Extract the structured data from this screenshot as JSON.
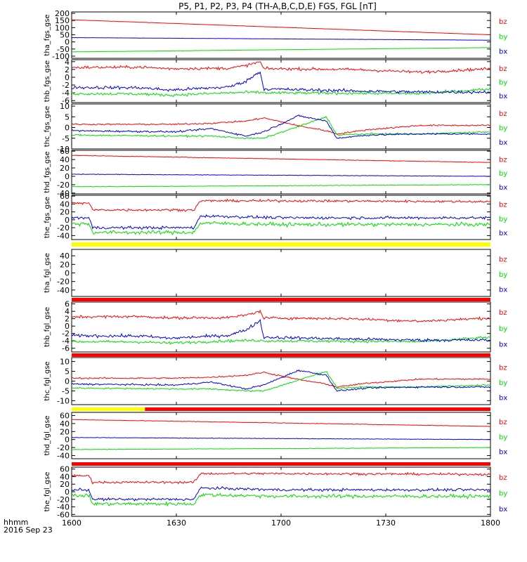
{
  "title": "P5, P1, P2, P3, P4 (TH-A,B,C,D,E) FGS, FGL [nT]",
  "x_axis": {
    "label_line1": "hhmm",
    "label_line2": "2016 Sep 23",
    "ticks": [
      "1600",
      "1630",
      "1700",
      "1730",
      "1800"
    ],
    "range": [
      "16:00",
      "18:00"
    ]
  },
  "colors": {
    "bz": "#ff0000",
    "by": "#00dd00",
    "bx": "#0000dd",
    "flag_yellow": "#ffff00",
    "flag_red": "#ff0000"
  },
  "chart_data": [
    {
      "type": "line",
      "panel": "tha_fgs_gse",
      "ylabel": "tha_fgs_gse",
      "ylim": [
        -115,
        210
      ],
      "yticks": [
        200,
        150,
        100,
        50,
        0,
        -50,
        -100
      ],
      "x": [
        "16:00",
        "18:00"
      ],
      "series": [
        {
          "name": "bz",
          "values": [
            155,
            50
          ],
          "noise": 0.5
        },
        {
          "name": "by",
          "values": [
            -70,
            -40
          ],
          "noise": 0.5
        },
        {
          "name": "bx",
          "values": [
            30,
            12
          ],
          "noise": 0.5
        }
      ]
    },
    {
      "type": "line",
      "panel": "thb_fgs_gse",
      "ylabel": "thb_fgs_gse",
      "ylim": [
        -6.5,
        4.5
      ],
      "yticks": [
        4,
        2,
        0,
        -2,
        -4,
        -6
      ],
      "x": [
        "16:00",
        "16:20",
        "16:28",
        "16:45",
        "16:50",
        "16:54",
        "16:55",
        "17:20",
        "17:40",
        "18:00"
      ],
      "series": [
        {
          "name": "bz",
          "values": [
            2.5,
            2.6,
            2.2,
            2.3,
            3.0,
            4.0,
            2.2,
            2.0,
            1.3,
            2.2
          ],
          "noise": 0.3
        },
        {
          "name": "by",
          "values": [
            -4.2,
            -4.3,
            -4.6,
            -4.0,
            -3.9,
            -3.9,
            -4.0,
            -4.1,
            -4.2,
            -3.0
          ],
          "noise": 0.3
        },
        {
          "name": "bx",
          "values": [
            -2.6,
            -2.7,
            -3.3,
            -2.5,
            -1.0,
            1.5,
            -3.0,
            -3.5,
            -3.8,
            -3.8
          ],
          "noise": 0.35
        }
      ]
    },
    {
      "type": "line",
      "panel": "thc_fgs_gse",
      "ylabel": "thc_fgs_gse",
      "ylim": [
        -10,
        11
      ],
      "yticks": [
        10,
        5,
        0,
        -5,
        -10
      ],
      "x": [
        "16:00",
        "16:30",
        "16:40",
        "16:50",
        "16:55",
        "17:05",
        "17:13",
        "17:16",
        "17:25",
        "17:40",
        "18:00"
      ],
      "series": [
        {
          "name": "bz",
          "values": [
            1.5,
            1.5,
            2.0,
            3.0,
            4.5,
            0.8,
            -1.5,
            -3.0,
            -1.0,
            1.0,
            1.0
          ],
          "noise": 0.3
        },
        {
          "name": "by",
          "values": [
            -3.5,
            -4.0,
            -4.0,
            -5.0,
            -5.0,
            0.5,
            5.0,
            -3.5,
            -3.0,
            -3.0,
            -2.0
          ],
          "noise": 0.3
        },
        {
          "name": "bx",
          "values": [
            -1.5,
            -2.0,
            -0.5,
            -4.0,
            -2.0,
            5.5,
            3.0,
            -5.0,
            -3.5,
            -3.0,
            -3.0
          ],
          "noise": 0.35
        }
      ]
    },
    {
      "type": "line",
      "panel": "thd_fgs_gse",
      "ylabel": "thd_fgs_gse",
      "ylim": [
        -42,
        62
      ],
      "yticks": [
        60,
        40,
        20,
        0,
        -20,
        -40
      ],
      "x": [
        "16:00",
        "18:00"
      ],
      "series": [
        {
          "name": "bz",
          "values": [
            50,
            33
          ],
          "noise": 0.5
        },
        {
          "name": "by",
          "values": [
            -25,
            -20
          ],
          "noise": 0.5
        },
        {
          "name": "bx",
          "values": [
            5,
            0
          ],
          "noise": 0.5
        }
      ]
    },
    {
      "type": "line",
      "panel": "the_fgs_gse",
      "ylabel": "the_fgs_gse",
      "ylim": [
        -50,
        62
      ],
      "yticks": [
        60,
        40,
        20,
        0,
        -20,
        -40
      ],
      "x": [
        "16:00",
        "16:05",
        "16:06",
        "16:35",
        "16:37",
        "17:00",
        "18:00"
      ],
      "series": [
        {
          "name": "bz",
          "values": [
            42,
            42,
            25,
            25,
            48,
            48,
            46
          ],
          "noise": 2.5
        },
        {
          "name": "by",
          "values": [
            -10,
            -10,
            -32,
            -32,
            -8,
            -12,
            -12
          ],
          "noise": 4.0
        },
        {
          "name": "bx",
          "values": [
            5,
            5,
            -20,
            -20,
            10,
            5,
            5
          ],
          "noise": 3.0
        }
      ]
    },
    {
      "type": "line",
      "panel": "tha_fgl_gse",
      "ylabel": "tha_fgl_gse",
      "ylim": [
        -55,
        55
      ],
      "yticks": [
        40,
        20,
        0,
        -20,
        -40
      ],
      "x": [
        "16:00",
        "18:00"
      ],
      "series": []
    },
    {
      "type": "line",
      "panel": "thb_fgl_gse",
      "ylabel": "thb_fgl_gse",
      "ylim": [
        -7,
        6.5
      ],
      "yticks": [
        6,
        4,
        2,
        0,
        -2,
        -4,
        -6
      ],
      "x": [
        "16:00",
        "16:20",
        "16:28",
        "16:45",
        "16:50",
        "16:54",
        "16:55",
        "17:20",
        "17:40",
        "18:00"
      ],
      "series": [
        {
          "name": "bz",
          "values": [
            2.5,
            2.6,
            2.2,
            2.3,
            3.0,
            4.0,
            2.2,
            2.0,
            1.3,
            2.2
          ],
          "noise": 0.3
        },
        {
          "name": "by",
          "values": [
            -4.2,
            -4.3,
            -4.6,
            -4.0,
            -3.9,
            -3.9,
            -4.0,
            -4.1,
            -4.2,
            -3.0
          ],
          "noise": 0.3
        },
        {
          "name": "bx",
          "values": [
            -2.6,
            -2.7,
            -3.3,
            -2.5,
            -1.0,
            1.5,
            -3.0,
            -3.5,
            -3.8,
            -3.8
          ],
          "noise": 0.35
        }
      ]
    },
    {
      "type": "line",
      "panel": "thc_fgl_gse",
      "ylabel": "thc_fgl_gse",
      "ylim": [
        -12,
        12
      ],
      "yticks": [
        10,
        5,
        0,
        -5,
        -10
      ],
      "x": [
        "16:00",
        "16:30",
        "16:40",
        "16:50",
        "16:55",
        "17:05",
        "17:13",
        "17:16",
        "17:25",
        "17:40",
        "18:00"
      ],
      "series": [
        {
          "name": "bz",
          "values": [
            1.5,
            1.5,
            2.0,
            3.0,
            4.5,
            0.8,
            -1.5,
            -3.0,
            -1.0,
            1.0,
            1.0
          ],
          "noise": 0.3
        },
        {
          "name": "by",
          "values": [
            -3.5,
            -4.0,
            -4.0,
            -5.0,
            -5.0,
            0.5,
            5.0,
            -3.5,
            -3.0,
            -3.0,
            -2.0
          ],
          "noise": 0.3
        },
        {
          "name": "bx",
          "values": [
            -1.5,
            -2.0,
            -0.5,
            -4.0,
            -2.0,
            5.5,
            3.0,
            -5.0,
            -3.5,
            -3.0,
            -3.0
          ],
          "noise": 0.35
        }
      ]
    },
    {
      "type": "line",
      "panel": "thd_fgl_gse",
      "ylabel": "thd_fgl_gse",
      "ylim": [
        -48,
        68
      ],
      "yticks": [
        60,
        40,
        20,
        0,
        -20,
        -40
      ],
      "x": [
        "16:00",
        "18:00"
      ],
      "series": [
        {
          "name": "bz",
          "values": [
            50,
            33
          ],
          "noise": 0.5
        },
        {
          "name": "by",
          "values": [
            -25,
            -20
          ],
          "noise": 0.5
        },
        {
          "name": "bx",
          "values": [
            5,
            0
          ],
          "noise": 0.5
        }
      ]
    },
    {
      "type": "line",
      "panel": "the_fgl_gse",
      "ylabel": "the_fgl_gse",
      "ylim": [
        -65,
        65
      ],
      "yticks": [
        60,
        40,
        20,
        0,
        -20,
        -40,
        -60
      ],
      "x": [
        "16:00",
        "16:05",
        "16:06",
        "16:35",
        "16:37",
        "17:00",
        "18:00"
      ],
      "series": [
        {
          "name": "bz",
          "values": [
            42,
            42,
            25,
            25,
            48,
            48,
            46
          ],
          "noise": 2.5
        },
        {
          "name": "by",
          "values": [
            -10,
            -10,
            -32,
            -32,
            -8,
            -12,
            -12
          ],
          "noise": 4.0
        },
        {
          "name": "bx",
          "values": [
            5,
            5,
            -20,
            -20,
            10,
            5,
            5
          ],
          "noise": 3.0
        }
      ]
    }
  ],
  "flag_bars": [
    {
      "after_panel": "the_fgs_gse",
      "segments": [
        {
          "from": "16:00",
          "to": "18:00",
          "color": "yellow"
        }
      ]
    },
    {
      "after_panel": "tha_fgl_gse",
      "segments": [
        {
          "from": "16:00",
          "to": "18:00",
          "color": "red"
        }
      ]
    },
    {
      "after_panel": "thb_fgl_gse",
      "segments": [
        {
          "from": "16:00",
          "to": "18:00",
          "color": "red"
        }
      ]
    },
    {
      "after_panel": "thc_fgl_gse",
      "segments": [
        {
          "from": "16:00",
          "to": "16:21",
          "color": "yellow"
        },
        {
          "from": "16:21",
          "to": "18:00",
          "color": "red"
        }
      ]
    },
    {
      "after_panel": "thd_fgl_gse",
      "segments": [
        {
          "from": "16:00",
          "to": "18:00",
          "color": "red"
        }
      ]
    }
  ],
  "legend": [
    "bz",
    "by",
    "bx"
  ]
}
